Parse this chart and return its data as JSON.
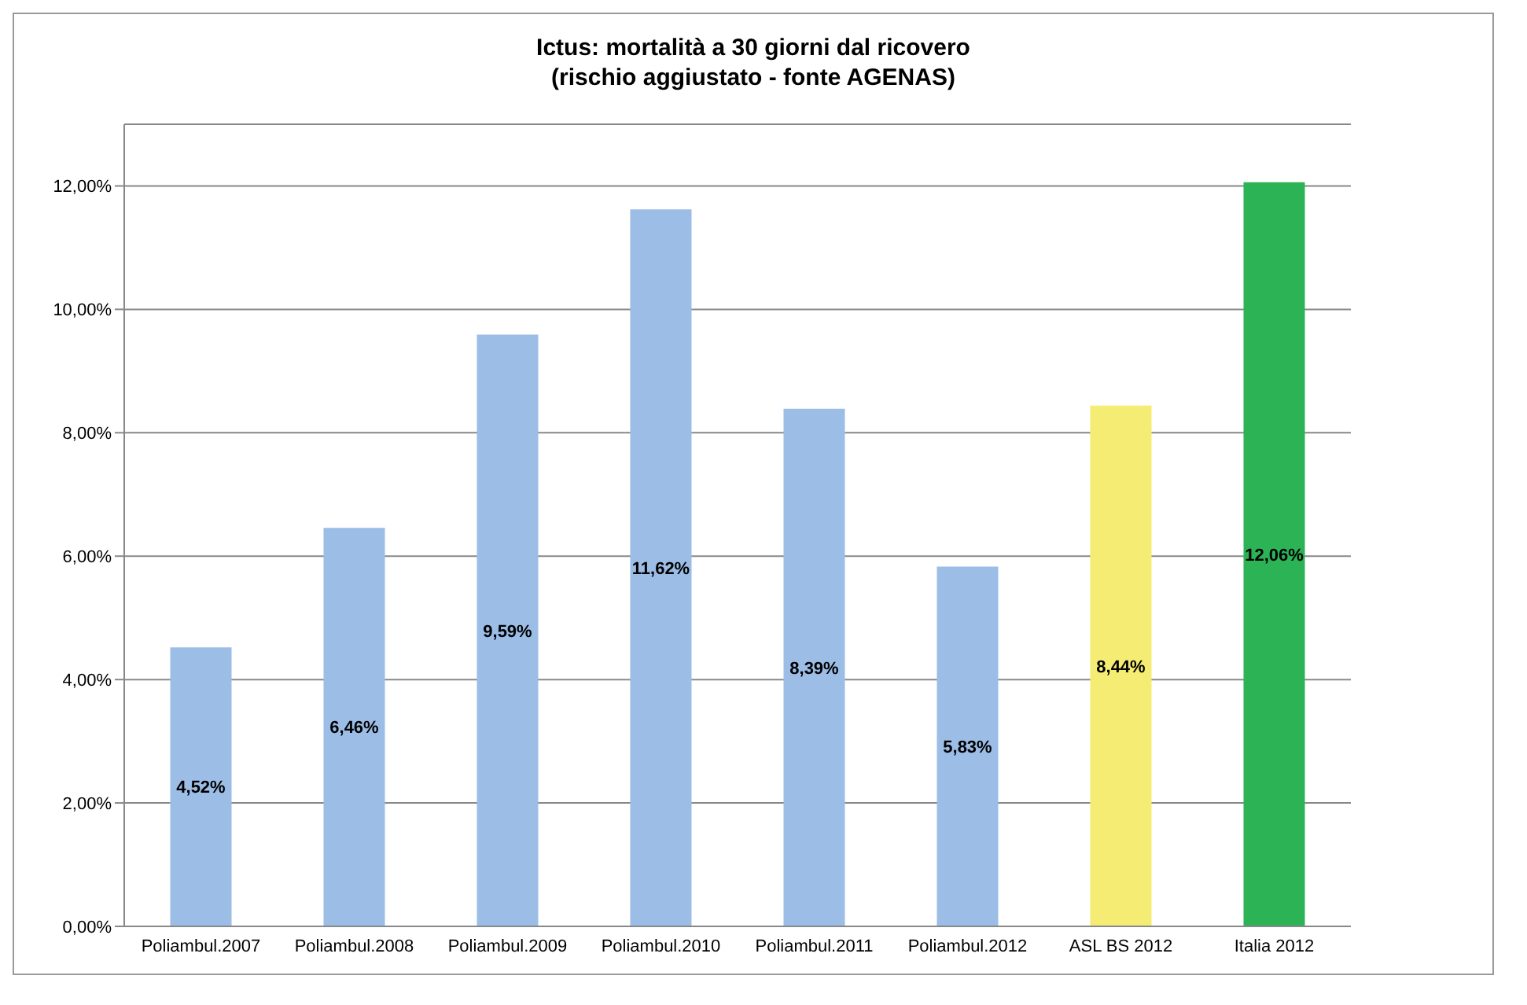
{
  "chart_data": {
    "type": "bar",
    "title": "Ictus: mortalità a 30 giorni dal ricovero\n(rischio aggiustato - fonte AGENAS)",
    "categories": [
      "Poliambul.2007",
      "Poliambul.2008",
      "Poliambul.2009",
      "Poliambul.2010",
      "Poliambul.2011",
      "Poliambul.2012",
      "ASL BS 2012",
      "Italia 2012"
    ],
    "values": [
      4.52,
      6.46,
      9.59,
      11.62,
      8.39,
      5.83,
      8.44,
      12.06
    ],
    "value_labels": [
      "4,52%",
      "6,46%",
      "9,59%",
      "11,62%",
      "8,39%",
      "5,83%",
      "8,44%",
      "12,06%"
    ],
    "colors": [
      "#9bbde6",
      "#9bbde6",
      "#9bbde6",
      "#9bbde6",
      "#9bbde6",
      "#9bbde6",
      "#f5ec74",
      "#2bb356"
    ],
    "ylim": [
      0,
      13
    ],
    "yticks": [
      {
        "value": 0,
        "label": "0,00%"
      },
      {
        "value": 2,
        "label": "2,00%"
      },
      {
        "value": 4,
        "label": "4,00%"
      },
      {
        "value": 6,
        "label": "6,00%"
      },
      {
        "value": 8,
        "label": "8,00%"
      },
      {
        "value": 10,
        "label": "10,00%"
      },
      {
        "value": 12,
        "label": "12,00%"
      }
    ],
    "grid": "y"
  }
}
